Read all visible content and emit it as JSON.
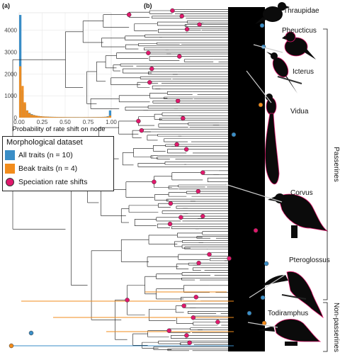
{
  "panels": {
    "a": "(a)",
    "b": "(b)"
  },
  "colors": {
    "all_traits": "#3a8ec7",
    "beak_traits": "#f28c1c",
    "speciation": "#e0186c",
    "tree": "#111111"
  },
  "legend": {
    "title": "Morphological dataset",
    "items": [
      {
        "label": "All traits (n = 10)",
        "kind": "swatch",
        "color": "#3a8ec7"
      },
      {
        "label": "Beak traits (n = 4)",
        "kind": "swatch",
        "color": "#f28c1c"
      },
      {
        "label": "Speciation rate shifts",
        "kind": "dot",
        "color": "#e0186c"
      }
    ]
  },
  "chart_data": [
    {
      "type": "bar",
      "panel": "(a)",
      "xlabel": "Probability of rate shift on node",
      "xlim": [
        0,
        1
      ],
      "ylim": [
        0,
        4800
      ],
      "xticks": [
        0.0,
        0.25,
        0.5,
        0.75,
        1.0
      ],
      "xtick_labels": [
        "0.00",
        "0.25",
        "0.50",
        "0.75",
        "1.00"
      ],
      "yticks": [
        0,
        1000,
        2000,
        3000,
        4000
      ],
      "grid": true,
      "bin_width": 0.025,
      "series": [
        {
          "name": "All traits (n = 10)",
          "color": "#3a8ec7",
          "values": [
            4700,
            1250,
            620,
            330,
            220,
            160,
            120,
            90,
            75,
            65,
            55,
            50,
            45,
            40,
            38,
            35,
            33,
            30,
            30,
            28,
            27,
            26,
            25,
            25,
            25,
            25,
            24,
            24,
            25,
            25,
            26,
            26,
            27,
            28,
            30,
            32,
            35,
            40,
            60,
            330
          ]
        },
        {
          "name": "Beak traits (n = 4)",
          "color": "#f28c1c",
          "values": [
            2350,
            1450,
            700,
            330,
            200,
            140,
            110,
            90,
            70,
            60,
            50,
            45,
            40,
            35,
            32,
            30,
            28,
            26,
            25,
            24,
            23,
            22,
            21,
            20,
            20,
            20,
            19,
            19,
            20,
            20,
            20,
            21,
            22,
            23,
            24,
            26,
            28,
            32,
            40,
            90
          ]
        }
      ]
    }
  ],
  "tree_panel": {
    "birds": [
      "Thraupidae",
      "Pheucticus",
      "Icterus",
      "Vidua",
      "Corvus",
      "Pteroglossus",
      "Todiramphus"
    ],
    "groups": [
      "Passerines",
      "Non-passerines"
    ]
  }
}
